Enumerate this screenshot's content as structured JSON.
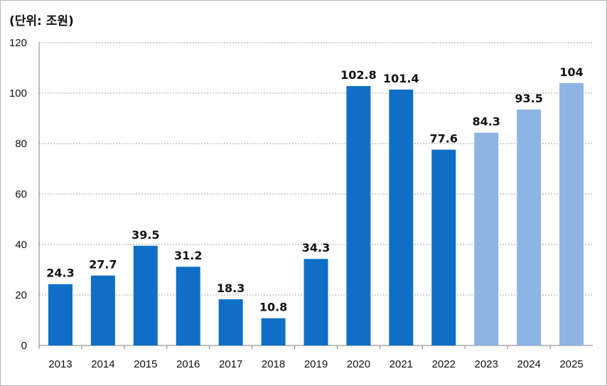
{
  "chart_data": {
    "type": "bar",
    "unit_label": "(단위: 조원)",
    "categories": [
      "2013",
      "2014",
      "2015",
      "2016",
      "2017",
      "2018",
      "2019",
      "2020",
      "2021",
      "2022",
      "2023",
      "2024",
      "2025"
    ],
    "values": [
      24.3,
      27.7,
      39.5,
      31.2,
      18.3,
      10.8,
      34.3,
      102.8,
      101.4,
      77.6,
      84.3,
      93.5,
      104
    ],
    "value_labels": [
      "24.3",
      "27.7",
      "39.5",
      "31.2",
      "18.3",
      "10.8",
      "34.3",
      "102.8",
      "101.4",
      "77.6",
      "84.3",
      "93.5",
      "104"
    ],
    "ylim": [
      0,
      120
    ],
    "yticks": [
      "0",
      "20",
      "40",
      "60",
      "80",
      "100",
      "120"
    ],
    "grid": true,
    "colors": {
      "actual": "#0f6fc6",
      "projected": "#8fb4e3",
      "grid": "#a6a6a6"
    },
    "projected_from_index": 10
  }
}
